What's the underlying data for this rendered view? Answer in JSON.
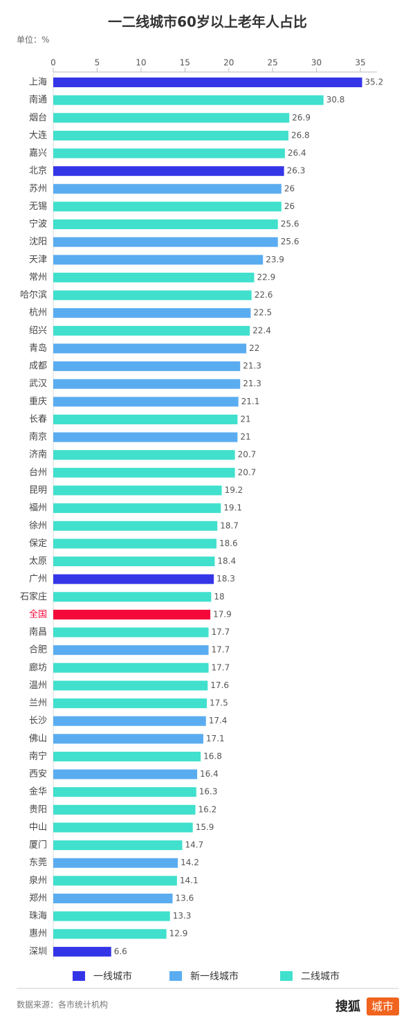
{
  "chart_data": {
    "type": "barh",
    "title": "一二线城市60岁以上老年人占比",
    "unit": "单位：%",
    "categories": [
      "上海",
      "南通",
      "烟台",
      "大连",
      "嘉兴",
      "北京",
      "苏州",
      "无锡",
      "宁波",
      "沈阳",
      "天津",
      "常州",
      "哈尔滨",
      "杭州",
      "绍兴",
      "青岛",
      "成都",
      "武汉",
      "重庆",
      "长春",
      "南京",
      "济南",
      "台州",
      "昆明",
      "福州",
      "徐州",
      "保定",
      "太原",
      "广州",
      "石家庄",
      "全国",
      "南昌",
      "合肥",
      "廊坊",
      "温州",
      "兰州",
      "长沙",
      "佛山",
      "南宁",
      "西安",
      "金华",
      "贵阳",
      "中山",
      "厦门",
      "东莞",
      "泉州",
      "郑州",
      "珠海",
      "惠州",
      "深圳"
    ],
    "values": [
      35.2,
      30.8,
      26.9,
      26.8,
      26.4,
      26.3,
      26,
      26,
      25.6,
      25.6,
      23.9,
      22.9,
      22.6,
      22.5,
      22.4,
      22,
      21.3,
      21.3,
      21.1,
      21,
      21,
      20.7,
      20.7,
      19.2,
      19.1,
      18.7,
      18.6,
      18.4,
      18.3,
      18,
      17.9,
      17.7,
      17.7,
      17.7,
      17.6,
      17.5,
      17.4,
      17.1,
      16.8,
      16.4,
      16.3,
      16.2,
      15.9,
      14.7,
      14.2,
      14.1,
      13.6,
      13.3,
      12.9,
      6.6
    ],
    "colors": [
      "#3535e8",
      "#40e0cc",
      "#40e0cc",
      "#40e0cc",
      "#40e0cc",
      "#3535e8",
      "#5aacf0",
      "#40e0cc",
      "#40e0cc",
      "#5aacf0",
      "#5aacf0",
      "#40e0cc",
      "#40e0cc",
      "#5aacf0",
      "#40e0cc",
      "#5aacf0",
      "#5aacf0",
      "#5aacf0",
      "#5aacf0",
      "#40e0cc",
      "#5aacf0",
      "#40e0cc",
      "#40e0cc",
      "#40e0cc",
      "#40e0cc",
      "#40e0cc",
      "#40e0cc",
      "#40e0cc",
      "#3535e8",
      "#40e0cc",
      "#f5093a",
      "#40e0cc",
      "#5aacf0",
      "#40e0cc",
      "#40e0cc",
      "#40e0cc",
      "#5aacf0",
      "#5aacf0",
      "#40e0cc",
      "#5aacf0",
      "#40e0cc",
      "#40e0cc",
      "#40e0cc",
      "#40e0cc",
      "#5aacf0",
      "#40e0cc",
      "#5aacf0",
      "#40e0cc",
      "#40e0cc",
      "#3535e8"
    ],
    "legend": [
      {
        "name": "一线城市",
        "color": "#3535e8"
      },
      {
        "name": "新一线城市",
        "color": "#5aacf0"
      },
      {
        "name": "二线城市",
        "color": "#40e0cc"
      }
    ],
    "xlim": [
      0,
      36.9
    ],
    "xticks": [
      0,
      5,
      10,
      15,
      20,
      25,
      30,
      35
    ]
  },
  "footer": {
    "source": "数据来源：各市统计机构",
    "brand": "搜狐",
    "brand_tag": "城市"
  }
}
